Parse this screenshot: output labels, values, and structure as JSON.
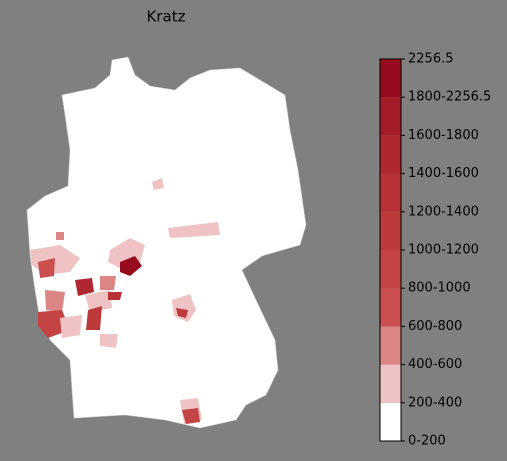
{
  "title": "Kratz",
  "colorbar": {
    "labels": [
      "0-200",
      "200-400",
      "400-600",
      "600-800",
      "800-1000",
      "1000-1200",
      "1200-1400",
      "1400-1600",
      "1600-1800",
      "1800-2256.5",
      "2256.5"
    ],
    "colors": [
      "#ffffff",
      "#efc3c3",
      "#dc8585",
      "#cb4f4f",
      "#c44444",
      "#bd3a3b",
      "#b83135",
      "#b0282f",
      "#a51c29",
      "#970b1f"
    ]
  }
}
